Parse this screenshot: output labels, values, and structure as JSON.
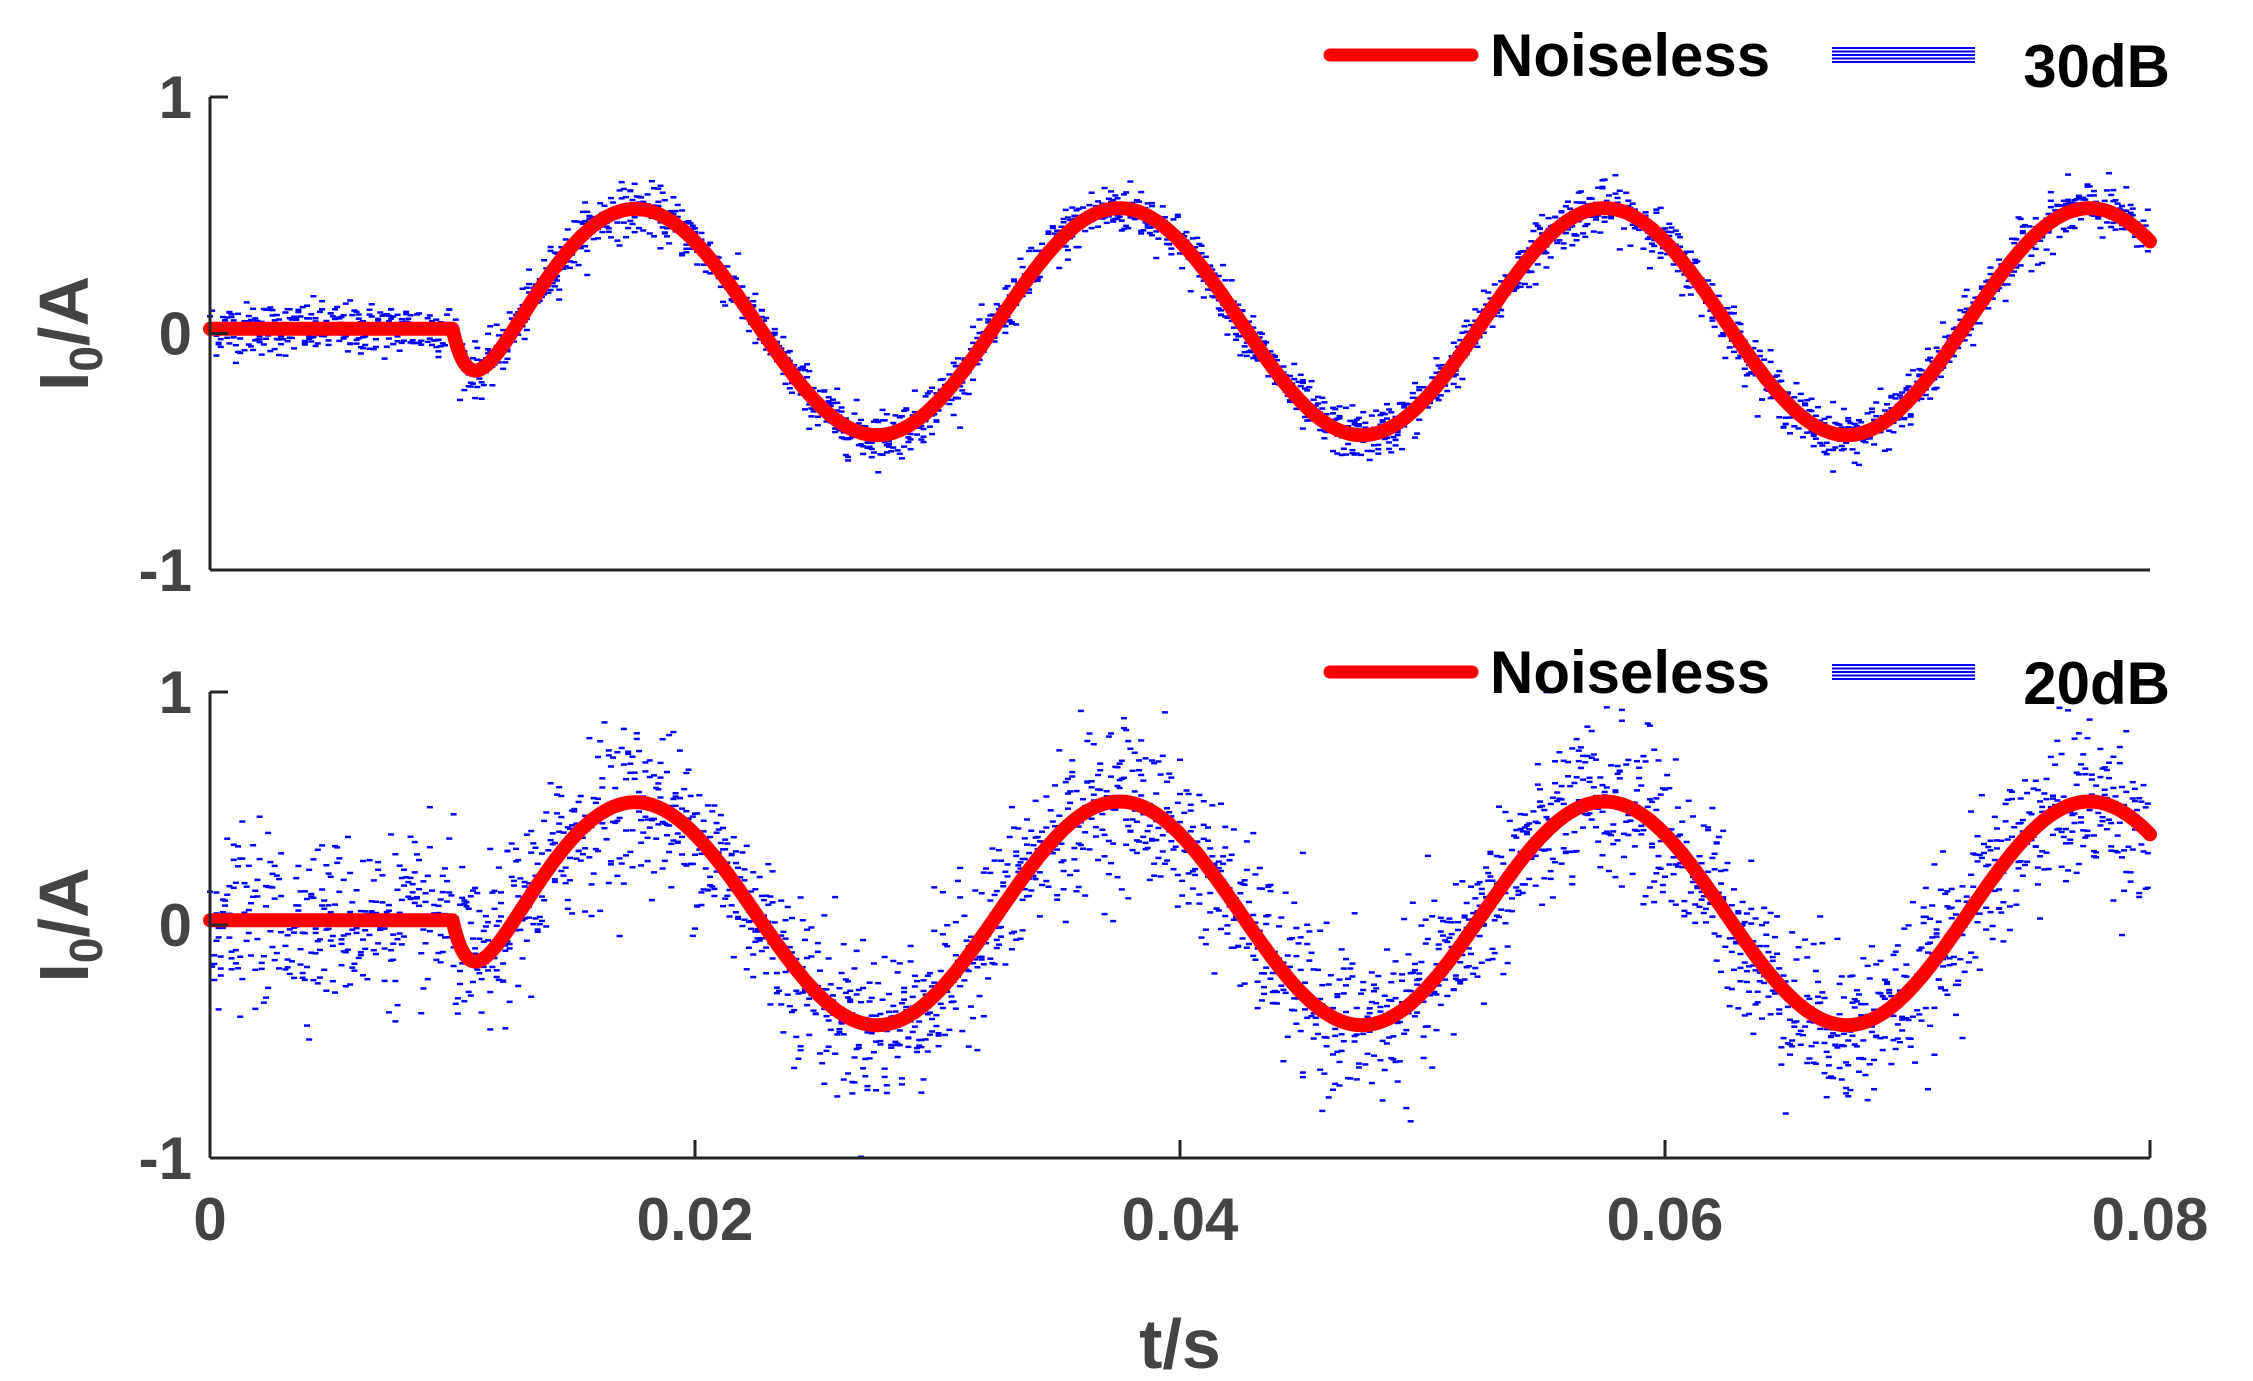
{
  "chart_data": [
    {
      "type": "line",
      "panel": "top",
      "ylabel_main": "I",
      "ylabel_sub": "0",
      "ylabel_tail": "/A",
      "xlabel": "",
      "xlim": [
        0,
        0.08
      ],
      "ylim": [
        -1,
        1
      ],
      "yticks": [
        -1,
        0,
        1
      ],
      "ytick_labels": [
        "-1",
        "0",
        "1"
      ],
      "legend_position": "top-right",
      "legend": [
        "Noiseless",
        "30dB"
      ],
      "series": [
        {
          "name": "Noiseless",
          "color": "#ff0000",
          "style": "thick-line",
          "model": {
            "fault_time": 0.01,
            "pre_fault_value": 0.02,
            "amplitude": 0.48,
            "offset": 0.05,
            "frequency_hz": 50,
            "phase_shift_s": 0.0025,
            "dc_decay_amplitude": -0.6,
            "dc_decay_tau_s": 0.0012
          }
        },
        {
          "name": "30dB",
          "color": "#0000ff",
          "style": "noisy",
          "snr_db": 30,
          "noise_amplitude": 0.055
        }
      ]
    },
    {
      "type": "line",
      "panel": "bottom",
      "ylabel_main": "I",
      "ylabel_sub": "0",
      "ylabel_tail": "/A",
      "xlabel": "t/s",
      "xlim": [
        0,
        0.08
      ],
      "ylim": [
        -1,
        1
      ],
      "yticks": [
        -1,
        0,
        1
      ],
      "ytick_labels": [
        "-1",
        "0",
        "1"
      ],
      "xticks": [
        0,
        0.02,
        0.04,
        0.06,
        0.08
      ],
      "xtick_labels": [
        "0",
        "0.02",
        "0.04",
        "0.06",
        "0.08"
      ],
      "legend_position": "top-right",
      "legend": [
        "Noiseless",
        "20dB"
      ],
      "series": [
        {
          "name": "Noiseless",
          "color": "#ff0000",
          "style": "thick-line",
          "model": {
            "fault_time": 0.01,
            "pre_fault_value": 0.02,
            "amplitude": 0.48,
            "offset": 0.05,
            "frequency_hz": 50,
            "phase_shift_s": 0.0025,
            "dc_decay_amplitude": -0.6,
            "dc_decay_tau_s": 0.0012
          }
        },
        {
          "name": "20dB",
          "color": "#0000ff",
          "style": "noisy",
          "snr_db": 20,
          "noise_amplitude": 0.17
        }
      ]
    }
  ]
}
